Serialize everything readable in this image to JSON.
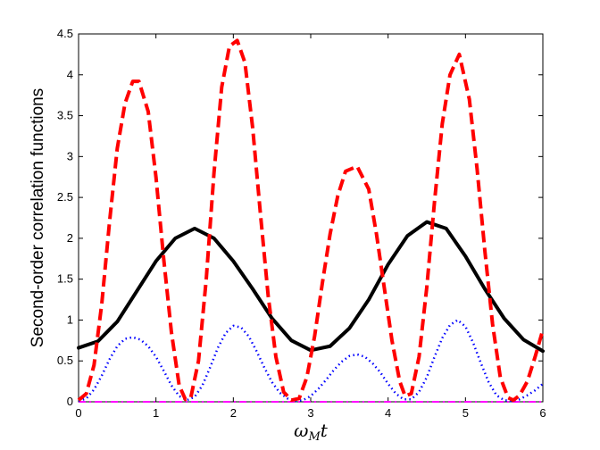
{
  "chart_data": {
    "type": "line",
    "title": "",
    "xlabel": "ω_M t",
    "xlabel_main": "ω",
    "xlabel_sub": "M",
    "xlabel_tail": "t",
    "ylabel": "Second-order correlation functions",
    "xlim": [
      0,
      6
    ],
    "ylim": [
      0,
      4.5
    ],
    "x_ticks": [
      0,
      1,
      2,
      3,
      4,
      5,
      6
    ],
    "y_ticks": [
      0,
      0.5,
      1,
      1.5,
      2,
      2.5,
      3,
      3.5,
      4,
      4.5
    ],
    "x_tick_labels": [
      "0",
      "1",
      "2",
      "3",
      "4",
      "5",
      "6"
    ],
    "y_tick_labels": [
      "0",
      "0.5",
      "1",
      "1.5",
      "2",
      "2.5",
      "3",
      "3.5",
      "4",
      "4.5"
    ],
    "grid": false,
    "legend": "none",
    "series": [
      {
        "color": "#000000",
        "style": "solid",
        "x": [
          0,
          0.25,
          0.5,
          0.75,
          1.0,
          1.25,
          1.5,
          1.75,
          2.0,
          2.25,
          2.5,
          2.75,
          3.0,
          3.25,
          3.5,
          3.75,
          4.0,
          4.25,
          4.5,
          4.75,
          5.0,
          5.25,
          5.5,
          5.75,
          6.0
        ],
        "y": [
          0.66,
          0.74,
          0.98,
          1.35,
          1.72,
          2.0,
          2.12,
          2.0,
          1.72,
          1.38,
          1.02,
          0.75,
          0.63,
          0.68,
          0.9,
          1.25,
          1.68,
          2.03,
          2.2,
          2.12,
          1.78,
          1.38,
          1.02,
          0.76,
          0.62
        ]
      },
      {
        "color": "#ff0000",
        "style": "dashed",
        "x": [
          0,
          0.1,
          0.2,
          0.3,
          0.4,
          0.5,
          0.6,
          0.7,
          0.78,
          0.9,
          1.0,
          1.1,
          1.2,
          1.3,
          1.38,
          1.45,
          1.55,
          1.65,
          1.75,
          1.85,
          1.95,
          2.05,
          2.15,
          2.25,
          2.35,
          2.45,
          2.55,
          2.65,
          2.75,
          2.85,
          2.95,
          3.05,
          3.15,
          3.25,
          3.35,
          3.45,
          3.6,
          3.75,
          3.85,
          3.95,
          4.05,
          4.15,
          4.22,
          4.3,
          4.4,
          4.5,
          4.6,
          4.7,
          4.8,
          4.92,
          5.05,
          5.15,
          5.25,
          5.35,
          5.45,
          5.55,
          5.62,
          5.7,
          5.8,
          5.9,
          6.0
        ],
        "y": [
          0.02,
          0.1,
          0.45,
          1.2,
          2.2,
          3.1,
          3.65,
          3.92,
          3.92,
          3.55,
          2.75,
          1.75,
          0.85,
          0.2,
          0.03,
          0.05,
          0.5,
          1.5,
          2.8,
          3.85,
          4.35,
          4.42,
          4.15,
          3.35,
          2.3,
          1.3,
          0.55,
          0.12,
          0.02,
          0.04,
          0.3,
          0.8,
          1.45,
          2.05,
          2.52,
          2.82,
          2.88,
          2.6,
          2.05,
          1.4,
          0.75,
          0.25,
          0.07,
          0.1,
          0.55,
          1.4,
          2.45,
          3.4,
          4.0,
          4.25,
          3.7,
          2.85,
          1.85,
          0.95,
          0.3,
          0.05,
          0.02,
          0.08,
          0.25,
          0.55,
          0.88
        ]
      },
      {
        "color": "#0000ff",
        "style": "dotted",
        "x": [
          0,
          0.1,
          0.2,
          0.3,
          0.4,
          0.5,
          0.6,
          0.7,
          0.8,
          0.9,
          1.0,
          1.1,
          1.2,
          1.3,
          1.4,
          1.5,
          1.6,
          1.7,
          1.8,
          1.9,
          2.0,
          2.1,
          2.2,
          2.3,
          2.4,
          2.5,
          2.6,
          2.7,
          2.8,
          2.9,
          3.0,
          3.1,
          3.2,
          3.3,
          3.4,
          3.5,
          3.6,
          3.7,
          3.8,
          3.9,
          4.0,
          4.1,
          4.2,
          4.3,
          4.4,
          4.5,
          4.6,
          4.7,
          4.8,
          4.9,
          5.0,
          5.1,
          5.2,
          5.3,
          5.4,
          5.5,
          5.6,
          5.7,
          5.8,
          5.9,
          6.0
        ],
        "y": [
          0.01,
          0.04,
          0.15,
          0.32,
          0.52,
          0.68,
          0.77,
          0.79,
          0.76,
          0.68,
          0.55,
          0.38,
          0.2,
          0.07,
          0.02,
          0.06,
          0.2,
          0.42,
          0.66,
          0.84,
          0.93,
          0.91,
          0.8,
          0.62,
          0.42,
          0.24,
          0.11,
          0.04,
          0.01,
          0.02,
          0.07,
          0.16,
          0.27,
          0.39,
          0.49,
          0.56,
          0.58,
          0.55,
          0.47,
          0.36,
          0.22,
          0.1,
          0.03,
          0.03,
          0.12,
          0.3,
          0.55,
          0.78,
          0.94,
          1.0,
          0.92,
          0.72,
          0.47,
          0.24,
          0.08,
          0.02,
          0.01,
          0.03,
          0.08,
          0.14,
          0.22
        ]
      },
      {
        "color": "#ff00ff",
        "style": "dash-dot",
        "x": [
          0,
          6
        ],
        "y": [
          0,
          0
        ]
      }
    ]
  }
}
